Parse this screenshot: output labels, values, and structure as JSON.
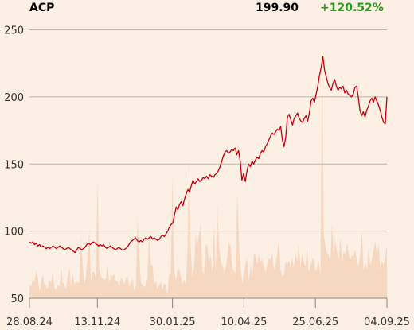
{
  "header": {
    "symbol": "ACP",
    "price": "199.90",
    "change": "+120.52%"
  },
  "colors": {
    "background": "#fcefe3",
    "price_line": "#c4000c",
    "volume_area": "#f6d7c0",
    "grid": "#bfb3a8",
    "change_positive": "#2a9a1e"
  },
  "chart_data": {
    "type": "line",
    "title": "",
    "xlabel": "",
    "ylabel": "",
    "ylim": [
      50,
      255
    ],
    "grid": "horizontal",
    "y_ticks": [
      50,
      100,
      150,
      200,
      250
    ],
    "x_tick_labels": [
      "28.08.24",
      "13.11.24",
      "30.01.25",
      "10.04.25",
      "25.06.25",
      "04.09.25"
    ],
    "x_tick_fraction": [
      0.0,
      0.19,
      0.4,
      0.6,
      0.8,
      1.0
    ],
    "series": [
      {
        "type": "line",
        "values": [
          92,
          91,
          92,
          90,
          91,
          89,
          90,
          88,
          89,
          88,
          87,
          88,
          87,
          88,
          89,
          88,
          87,
          88,
          89,
          88,
          87,
          86,
          87,
          88,
          87,
          86,
          85,
          84,
          86,
          88,
          87,
          86,
          87,
          88,
          90,
          91,
          90,
          91,
          92,
          91,
          90,
          89,
          90,
          89,
          90,
          88,
          87,
          88,
          89,
          88,
          87,
          86,
          87,
          88,
          87,
          86,
          86,
          87,
          88,
          90,
          92,
          93,
          94,
          95,
          93,
          92,
          93,
          92,
          94,
          95,
          94,
          95,
          96,
          94,
          95,
          94,
          93,
          94,
          96,
          97,
          96,
          98,
          100,
          103,
          105,
          106,
          112,
          118,
          116,
          120,
          122,
          119,
          124,
          128,
          131,
          129,
          134,
          138,
          135,
          137,
          139,
          137,
          138,
          140,
          139,
          141,
          139,
          142,
          141,
          140,
          142,
          143,
          145,
          148,
          152,
          156,
          159,
          160,
          158,
          159,
          161,
          160,
          162,
          157,
          160,
          152,
          138,
          143,
          137,
          145,
          150,
          148,
          152,
          150,
          153,
          155,
          154,
          158,
          160,
          159,
          163,
          165,
          168,
          171,
          173,
          172,
          174,
          176,
          175,
          178,
          168,
          163,
          170,
          185,
          187,
          183,
          179,
          184,
          186,
          188,
          184,
          182,
          181,
          184,
          186,
          182,
          188,
          197,
          199,
          196,
          202,
          208,
          216,
          222,
          230,
          220,
          215,
          210,
          207,
          205,
          210,
          213,
          208,
          205,
          207,
          206,
          208,
          203,
          205,
          202,
          201,
          200,
          202,
          207,
          208,
          200,
          190,
          186,
          189,
          185,
          190,
          193,
          197,
          199,
          196,
          200,
          197,
          194,
          190,
          185,
          181,
          180,
          200
        ]
      },
      {
        "type": "area",
        "name": "",
        "values": [
          60,
          58,
          64,
          62,
          70,
          66,
          55,
          62,
          68,
          60,
          59,
          57,
          64,
          61,
          70,
          58,
          56,
          60,
          58,
          74,
          62,
          59,
          57,
          66,
          73,
          58,
          69,
          60,
          63,
          61,
          62,
          96,
          76,
          60,
          66,
          81,
          100,
          62,
          70,
          69,
          65,
          138,
          72,
          66,
          65,
          64,
          64,
          75,
          61,
          68,
          66,
          68,
          63,
          62,
          59,
          65,
          64,
          60,
          65,
          66,
          58,
          61,
          65,
          55,
          60,
          110,
          82,
          62,
          60,
          58,
          60,
          65,
          99,
          75,
          75,
          60,
          63,
          57,
          60,
          62,
          56,
          61,
          60,
          53,
          68,
          69,
          140,
          71,
          63,
          70,
          72,
          66,
          60,
          64,
          60,
          87,
          153,
          85,
          66,
          72,
          97,
          90,
          98,
          106,
          70,
          68,
          90,
          89,
          77,
          82,
          69,
          105,
          68,
          120,
          88,
          78,
          74,
          70,
          72,
          81,
          92,
          88,
          73,
          70,
          69,
          129,
          93,
          72,
          61,
          70,
          75,
          80,
          63,
          75,
          66,
          83,
          82,
          75,
          83,
          77,
          79,
          73,
          69,
          75,
          80,
          78,
          84,
          71,
          75,
          83,
          94,
          71,
          67,
          67,
          77,
          75,
          78,
          73,
          80,
          72,
          84,
          78,
          90,
          71,
          84,
          76,
          74,
          87,
          69,
          74,
          78,
          80,
          70,
          73,
          78,
          65,
          240,
          99,
          88,
          83,
          82,
          77,
          106,
          82,
          93,
          84,
          79,
          95,
          77,
          85,
          82,
          91,
          83,
          79,
          82,
          81,
          86,
          76,
          74,
          85,
          100,
          71,
          76,
          71,
          89,
          74,
          79,
          86,
          93,
          82,
          91,
          71,
          77,
          75,
          80,
          90
        ]
      }
    ]
  }
}
